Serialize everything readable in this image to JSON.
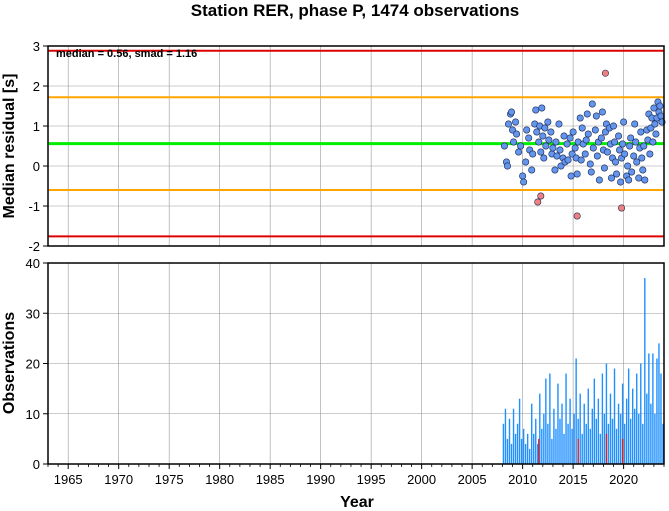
{
  "chart_data": [
    {
      "type": "scatter",
      "title": "Station RER, phase P, 1474 observations",
      "xlabel": "",
      "ylabel": "Median residual [s]",
      "xlim": [
        1963,
        2024
      ],
      "ylim": [
        -2,
        3
      ],
      "yticks": [
        -2,
        -1,
        0,
        1,
        2,
        3
      ],
      "grid": true,
      "annotation": "median = 0.56, smad = 1.16",
      "reference_lines": [
        {
          "y": 2.88,
          "color": "#dd0000"
        },
        {
          "y": 1.72,
          "color": "#ffa500"
        },
        {
          "y": 0.56,
          "color": "#00ee00"
        },
        {
          "y": -0.6,
          "color": "#ffa500"
        },
        {
          "y": -1.76,
          "color": "#dd0000"
        }
      ],
      "series": [
        {
          "color": "#6495ed",
          "points": [
            [
              2008.2,
              0.5
            ],
            [
              2008.4,
              0.1
            ],
            [
              2008.5,
              0.0
            ],
            [
              2008.6,
              1.05
            ],
            [
              2008.8,
              1.3
            ],
            [
              2008.9,
              1.35
            ],
            [
              2009.0,
              0.9
            ],
            [
              2009.1,
              0.6
            ],
            [
              2009.3,
              1.1
            ],
            [
              2009.4,
              0.8
            ],
            [
              2009.6,
              0.35
            ],
            [
              2009.8,
              0.5
            ],
            [
              2010.0,
              -0.25
            ],
            [
              2010.1,
              -0.4
            ],
            [
              2010.3,
              0.1
            ],
            [
              2010.4,
              0.9
            ],
            [
              2010.6,
              0.7
            ],
            [
              2010.7,
              0.4
            ],
            [
              2010.9,
              -0.1
            ],
            [
              2011.0,
              0.3
            ],
            [
              2011.2,
              1.05
            ],
            [
              2011.3,
              1.4
            ],
            [
              2011.4,
              0.85
            ],
            [
              2011.6,
              0.6
            ],
            [
              2011.7,
              1.0
            ],
            [
              2011.8,
              0.35
            ],
            [
              2011.9,
              1.45
            ],
            [
              2012.0,
              0.75
            ],
            [
              2012.1,
              0.2
            ],
            [
              2012.2,
              0.95
            ],
            [
              2012.3,
              0.5
            ],
            [
              2012.5,
              1.1
            ],
            [
              2012.6,
              0.65
            ],
            [
              2012.8,
              0.85
            ],
            [
              2012.9,
              0.3
            ],
            [
              2013.0,
              0.45
            ],
            [
              2013.2,
              -0.1
            ],
            [
              2013.3,
              0.6
            ],
            [
              2013.4,
              0.25
            ],
            [
              2013.6,
              1.05
            ],
            [
              2013.7,
              0.4
            ],
            [
              2013.8,
              0.0
            ],
            [
              2014.0,
              0.2
            ],
            [
              2014.1,
              0.75
            ],
            [
              2014.2,
              0.1
            ],
            [
              2014.4,
              0.55
            ],
            [
              2014.5,
              0.15
            ],
            [
              2014.7,
              0.7
            ],
            [
              2014.8,
              -0.25
            ],
            [
              2014.9,
              0.3
            ],
            [
              2015.0,
              0.85
            ],
            [
              2015.2,
              0.45
            ],
            [
              2015.3,
              0.2
            ],
            [
              2015.4,
              -0.2
            ],
            [
              2015.5,
              0.6
            ],
            [
              2015.7,
              1.2
            ],
            [
              2015.8,
              0.15
            ],
            [
              2015.9,
              0.95
            ],
            [
              2016.0,
              0.55
            ],
            [
              2016.2,
              0.3
            ],
            [
              2016.3,
              0.65
            ],
            [
              2016.4,
              1.3
            ],
            [
              2016.5,
              0.8
            ],
            [
              2016.7,
              0.05
            ],
            [
              2016.8,
              -0.15
            ],
            [
              2016.9,
              1.55
            ],
            [
              2017.0,
              0.45
            ],
            [
              2017.2,
              0.9
            ],
            [
              2017.3,
              1.25
            ],
            [
              2017.4,
              0.25
            ],
            [
              2017.5,
              0.6
            ],
            [
              2017.6,
              -0.35
            ],
            [
              2017.8,
              0.7
            ],
            [
              2017.9,
              1.35
            ],
            [
              2018.0,
              0.4
            ],
            [
              2018.1,
              -0.05
            ],
            [
              2018.2,
              0.85
            ],
            [
              2018.3,
              1.05
            ],
            [
              2018.4,
              0.35
            ],
            [
              2018.6,
              0.95
            ],
            [
              2018.7,
              0.55
            ],
            [
              2018.8,
              -0.3
            ],
            [
              2018.9,
              0.2
            ],
            [
              2019.0,
              1.0
            ],
            [
              2019.1,
              0.6
            ],
            [
              2019.2,
              0.1
            ],
            [
              2019.3,
              -0.2
            ],
            [
              2019.5,
              0.75
            ],
            [
              2019.6,
              0.4
            ],
            [
              2019.7,
              -0.4
            ],
            [
              2019.8,
              0.2
            ],
            [
              2019.9,
              0.55
            ],
            [
              2020.0,
              1.1
            ],
            [
              2020.1,
              0.3
            ],
            [
              2020.3,
              -0.25
            ],
            [
              2020.4,
              0.0
            ],
            [
              2020.5,
              -0.35
            ],
            [
              2020.6,
              0.5
            ],
            [
              2020.7,
              0.7
            ],
            [
              2020.8,
              -0.15
            ],
            [
              2021.0,
              0.25
            ],
            [
              2021.1,
              1.05
            ],
            [
              2021.2,
              0.6
            ],
            [
              2021.3,
              0.1
            ],
            [
              2021.5,
              -0.3
            ],
            [
              2021.6,
              0.45
            ],
            [
              2021.7,
              0.85
            ],
            [
              2021.8,
              0.2
            ],
            [
              2021.9,
              -0.1
            ],
            [
              2022.0,
              0.5
            ],
            [
              2022.1,
              -0.35
            ],
            [
              2022.3,
              0.9
            ],
            [
              2022.4,
              0.65
            ],
            [
              2022.5,
              1.3
            ],
            [
              2022.6,
              0.3
            ],
            [
              2022.7,
              0.95
            ],
            [
              2022.8,
              1.2
            ],
            [
              2022.9,
              0.6
            ],
            [
              2023.0,
              1.45
            ],
            [
              2023.1,
              1.05
            ],
            [
              2023.2,
              0.8
            ],
            [
              2023.3,
              1.2
            ],
            [
              2023.4,
              1.6
            ],
            [
              2023.5,
              1.35
            ],
            [
              2023.6,
              1.5
            ],
            [
              2023.7,
              1.25
            ],
            [
              2023.8,
              1.1
            ]
          ]
        },
        {
          "color": "#f08080",
          "points": [
            [
              2011.5,
              -0.9
            ],
            [
              2011.8,
              -0.75
            ],
            [
              2015.4,
              -1.25
            ],
            [
              2018.2,
              2.32
            ],
            [
              2019.8,
              -1.05
            ]
          ]
        }
      ]
    },
    {
      "type": "bar",
      "title": "",
      "xlabel": "Year",
      "ylabel": "Observations",
      "xlim": [
        1963,
        2024
      ],
      "ylim": [
        0,
        40
      ],
      "xticks": [
        1965,
        1970,
        1975,
        1980,
        1985,
        1990,
        1995,
        2000,
        2005,
        2010,
        2015,
        2020
      ],
      "yticks": [
        0,
        10,
        20,
        30,
        40
      ],
      "grid": true,
      "series": [
        {
          "color": "#1e90ff",
          "bars": [
            [
              2008.1,
              8
            ],
            [
              2008.3,
              11
            ],
            [
              2008.5,
              5
            ],
            [
              2008.7,
              9
            ],
            [
              2008.9,
              4
            ],
            [
              2009.1,
              11
            ],
            [
              2009.3,
              6
            ],
            [
              2009.5,
              8
            ],
            [
              2009.7,
              13
            ],
            [
              2009.9,
              5
            ],
            [
              2010.1,
              7
            ],
            [
              2010.3,
              4
            ],
            [
              2010.5,
              6
            ],
            [
              2010.7,
              3
            ],
            [
              2010.9,
              12
            ],
            [
              2011.1,
              6
            ],
            [
              2011.3,
              9
            ],
            [
              2011.5,
              4
            ],
            [
              2011.7,
              14
            ],
            [
              2011.9,
              7
            ],
            [
              2012.1,
              10
            ],
            [
              2012.3,
              17
            ],
            [
              2012.5,
              8
            ],
            [
              2012.7,
              18
            ],
            [
              2012.9,
              5
            ],
            [
              2013.1,
              11
            ],
            [
              2013.3,
              7
            ],
            [
              2013.5,
              16
            ],
            [
              2013.7,
              9
            ],
            [
              2013.9,
              12
            ],
            [
              2014.1,
              6
            ],
            [
              2014.3,
              18
            ],
            [
              2014.5,
              8
            ],
            [
              2014.7,
              13
            ],
            [
              2014.9,
              7
            ],
            [
              2015.1,
              10
            ],
            [
              2015.3,
              21
            ],
            [
              2015.5,
              9
            ],
            [
              2015.7,
              14
            ],
            [
              2015.9,
              6
            ],
            [
              2016.1,
              12
            ],
            [
              2016.3,
              8
            ],
            [
              2016.5,
              15
            ],
            [
              2016.7,
              7
            ],
            [
              2016.9,
              11
            ],
            [
              2017.1,
              17
            ],
            [
              2017.3,
              9
            ],
            [
              2017.5,
              13
            ],
            [
              2017.7,
              6
            ],
            [
              2017.9,
              18
            ],
            [
              2018.1,
              10
            ],
            [
              2018.3,
              20
            ],
            [
              2018.5,
              8
            ],
            [
              2018.7,
              14
            ],
            [
              2018.9,
              9
            ],
            [
              2019.1,
              19
            ],
            [
              2019.3,
              7
            ],
            [
              2019.5,
              12
            ],
            [
              2019.7,
              10
            ],
            [
              2019.9,
              16
            ],
            [
              2020.1,
              8
            ],
            [
              2020.3,
              13
            ],
            [
              2020.5,
              19
            ],
            [
              2020.7,
              9
            ],
            [
              2020.9,
              15
            ],
            [
              2021.1,
              11
            ],
            [
              2021.3,
              18
            ],
            [
              2021.5,
              10
            ],
            [
              2021.7,
              20
            ],
            [
              2021.9,
              8
            ],
            [
              2022.1,
              37
            ],
            [
              2022.3,
              14
            ],
            [
              2022.5,
              22
            ],
            [
              2022.7,
              12
            ],
            [
              2022.9,
              22
            ],
            [
              2023.1,
              10
            ],
            [
              2023.3,
              21
            ],
            [
              2023.5,
              24
            ],
            [
              2023.7,
              18
            ],
            [
              2023.9,
              8
            ]
          ]
        },
        {
          "color": "#dd2222",
          "bars": [
            [
              2011.6,
              5
            ],
            [
              2015.5,
              5
            ],
            [
              2018.3,
              6
            ],
            [
              2019.9,
              5
            ]
          ]
        }
      ]
    }
  ]
}
